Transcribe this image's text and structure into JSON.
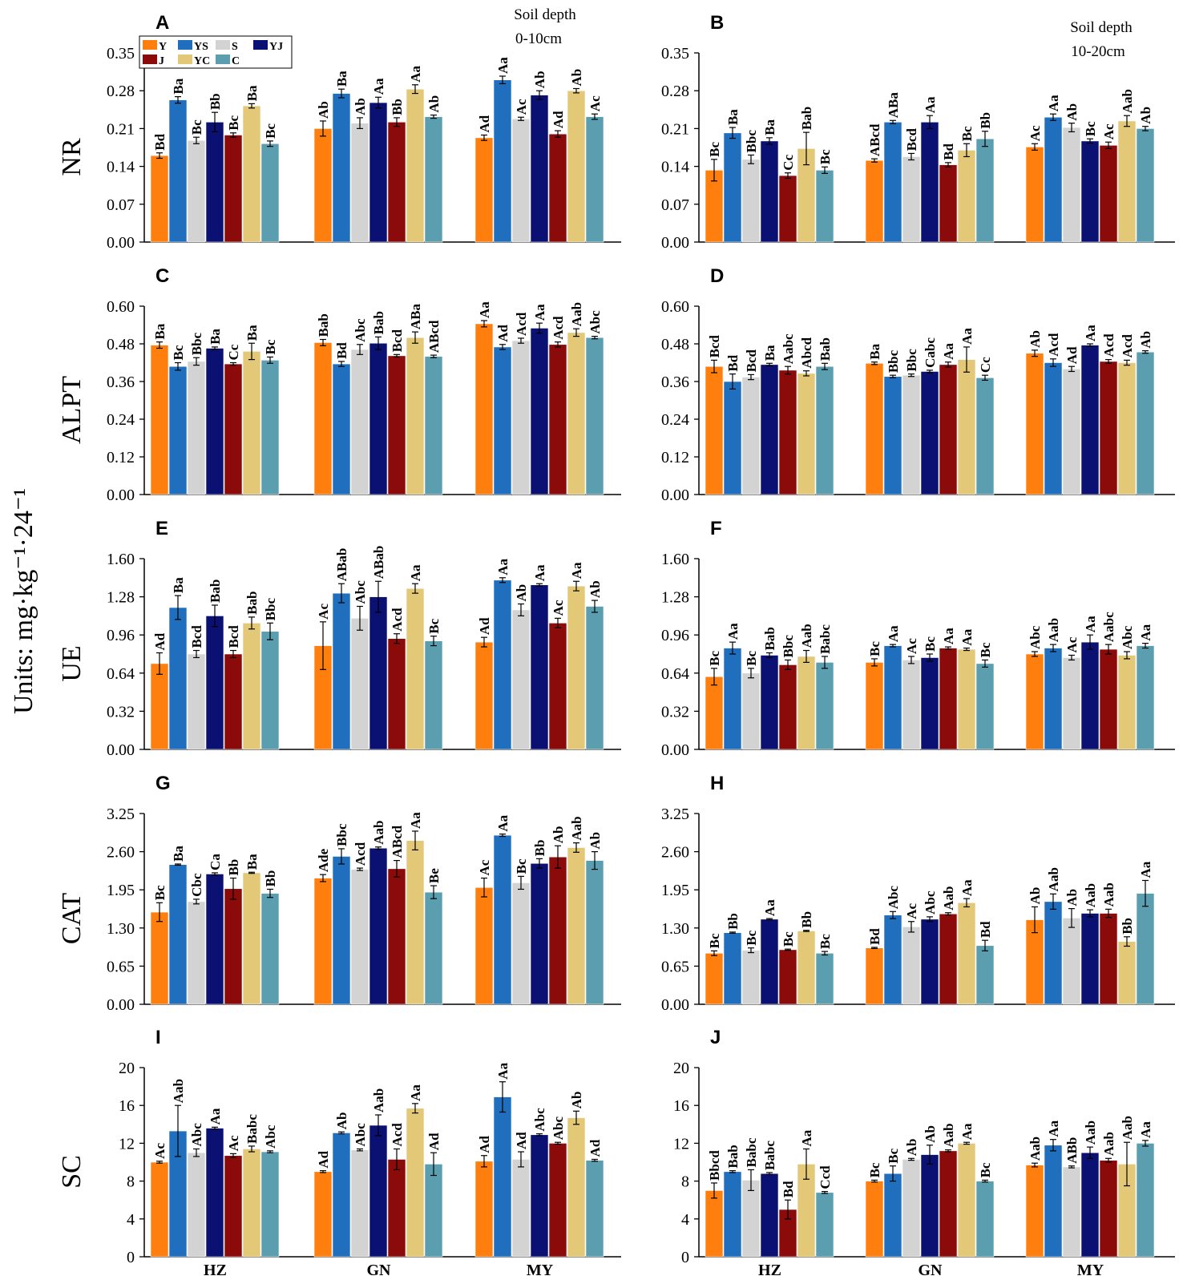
{
  "figure": {
    "units_label": "Units: mg·kg⁻¹·24⁻¹",
    "depth_left": {
      "title": "Soil depth",
      "range": "0-10cm"
    },
    "depth_right": {
      "title": "Soil depth",
      "range": "10-20cm"
    }
  },
  "legend": [
    {
      "name": "Y",
      "color": "#FF7F0E"
    },
    {
      "name": "YS",
      "color": "#1F6FBE"
    },
    {
      "name": "S",
      "color": "#D3D3D3"
    },
    {
      "name": "YJ",
      "color": "#0A1172"
    },
    {
      "name": "J",
      "color": "#8B0A0A"
    },
    {
      "name": "YC",
      "color": "#E3C878"
    },
    {
      "name": "C",
      "color": "#5B9EB0"
    }
  ],
  "chart_data": [
    {
      "type": "bar",
      "panel": "A",
      "ylabel": "NR",
      "depth": "0-10cm",
      "categories": [
        "HZ",
        "GN",
        "MY"
      ],
      "ylim": [
        0,
        0.35
      ],
      "ticks": [
        "0.00",
        "0.07",
        "0.14",
        "0.21",
        "0.28",
        "0.35"
      ],
      "values": [
        [
          0.16,
          0.263,
          0.188,
          0.222,
          0.198,
          0.252,
          0.182
        ],
        [
          0.21,
          0.275,
          0.22,
          0.258,
          0.222,
          0.283,
          0.232
        ],
        [
          0.193,
          0.3,
          0.228,
          0.272,
          0.2,
          0.28,
          0.232
        ]
      ],
      "errors": [
        [
          0.005,
          0.006,
          0.006,
          0.018,
          0.004,
          0.004,
          0.005
        ],
        [
          0.014,
          0.008,
          0.01,
          0.01,
          0.008,
          0.008,
          0.003
        ],
        [
          0.005,
          0.007,
          0.003,
          0.008,
          0.006,
          0.004,
          0.005
        ]
      ],
      "letters": [
        [
          "Bd",
          "Ba",
          "Bc",
          "Bb",
          "Bc",
          "Ba",
          "Bc"
        ],
        [
          "Ab",
          "Ba",
          "Ab",
          "Aa",
          "Bb",
          "Aa",
          "Ab"
        ],
        [
          "Ad",
          "Aa",
          "Ac",
          "Ab",
          "Ad",
          "Ab",
          "Ac"
        ]
      ]
    },
    {
      "type": "bar",
      "panel": "B",
      "ylabel": "",
      "depth": "10-20cm",
      "categories": [
        "HZ",
        "GN",
        "MY"
      ],
      "ylim": [
        0,
        0.35
      ],
      "ticks": [
        "0.00",
        "0.07",
        "0.14",
        "0.21",
        "0.28",
        "0.35"
      ],
      "values": [
        [
          0.133,
          0.202,
          0.153,
          0.187,
          0.123,
          0.173,
          0.133
        ],
        [
          0.151,
          0.222,
          0.158,
          0.222,
          0.143,
          0.17,
          0.191
        ],
        [
          0.176,
          0.231,
          0.212,
          0.187,
          0.179,
          0.224,
          0.21
        ]
      ],
      "errors": [
        [
          0.02,
          0.01,
          0.008,
          0.006,
          0.005,
          0.03,
          0.006
        ],
        [
          0.003,
          0.003,
          0.006,
          0.012,
          0.004,
          0.012,
          0.014
        ],
        [
          0.006,
          0.006,
          0.008,
          0.004,
          0.006,
          0.01,
          0.004
        ]
      ],
      "letters": [
        [
          "Bc",
          "Ba",
          "Bbc",
          "Ba",
          "Cc",
          "Bab",
          "Bc"
        ],
        [
          "ABcd",
          "ABa",
          "Bcd",
          "Aa",
          "Bd",
          "Bc",
          "Bb"
        ],
        [
          "Ac",
          "Aa",
          "Ab",
          "Bc",
          "Ac",
          "Aab",
          "Ab"
        ]
      ]
    },
    {
      "type": "bar",
      "panel": "C",
      "ylabel": "ALPT",
      "depth": "0-10cm",
      "categories": [
        "HZ",
        "GN",
        "MY"
      ],
      "ylim": [
        0,
        0.6
      ],
      "ticks": [
        "0.00",
        "0.12",
        "0.24",
        "0.36",
        "0.48",
        "0.60"
      ],
      "values": [
        [
          0.476,
          0.408,
          0.424,
          0.466,
          0.416,
          0.456,
          0.428
        ],
        [
          0.484,
          0.416,
          0.462,
          0.482,
          0.442,
          0.5,
          0.44
        ],
        [
          0.544,
          0.47,
          0.49,
          0.53,
          0.478,
          0.516,
          0.5
        ]
      ],
      "errors": [
        [
          0.01,
          0.012,
          0.012,
          0.004,
          0.004,
          0.026,
          0.01
        ],
        [
          0.01,
          0.008,
          0.016,
          0.02,
          0.004,
          0.018,
          0.004
        ],
        [
          0.01,
          0.008,
          0.008,
          0.016,
          0.008,
          0.012,
          0.004
        ]
      ],
      "letters": [
        [
          "Ba",
          "Bc",
          "Bbc",
          "Ba",
          "Cc",
          "Ba",
          "Bc"
        ],
        [
          "Bab",
          "Bd",
          "Abc",
          "Bab",
          "Bcd",
          "ABa",
          "ABcd"
        ],
        [
          "Aa",
          "Ad",
          "Acd",
          "Aa",
          "Acd",
          "Aab",
          "Abc"
        ]
      ]
    },
    {
      "type": "bar",
      "panel": "D",
      "ylabel": "",
      "depth": "10-20cm",
      "categories": [
        "HZ",
        "GN",
        "MY"
      ],
      "ylim": [
        0,
        0.6
      ],
      "ticks": [
        "0.00",
        "0.12",
        "0.24",
        "0.36",
        "0.48",
        "0.60"
      ],
      "values": [
        [
          0.408,
          0.36,
          0.374,
          0.414,
          0.396,
          0.386,
          0.408
        ],
        [
          0.418,
          0.376,
          0.38,
          0.392,
          0.414,
          0.43,
          0.372
        ],
        [
          0.45,
          0.42,
          0.4,
          0.476,
          0.424,
          0.42,
          0.454
        ]
      ],
      "errors": [
        [
          0.02,
          0.024,
          0.008,
          0.004,
          0.012,
          0.008,
          0.01
        ],
        [
          0.004,
          0.004,
          0.004,
          0.004,
          0.008,
          0.04,
          0.008
        ],
        [
          0.01,
          0.012,
          0.008,
          0.004,
          0.006,
          0.008,
          0.004
        ]
      ],
      "letters": [
        [
          "Bcd",
          "Bd",
          "Bcd",
          "Ba",
          "Aabc",
          "Abcd",
          "Bab"
        ],
        [
          "Ba",
          "Bbc",
          "Bbc",
          "Cabc",
          "Aa",
          "Aa",
          "Cc"
        ],
        [
          "Ab",
          "Acd",
          "Ad",
          "Aa",
          "Acd",
          "Acd",
          "Ab"
        ]
      ]
    },
    {
      "type": "bar",
      "panel": "E",
      "ylabel": "UE",
      "depth": "0-10cm",
      "categories": [
        "HZ",
        "GN",
        "MY"
      ],
      "ylim": [
        0,
        1.6
      ],
      "ticks": [
        "0.00",
        "0.32",
        "0.64",
        "0.96",
        "1.28",
        "1.60"
      ],
      "values": [
        [
          0.72,
          1.19,
          0.8,
          1.12,
          0.8,
          1.06,
          0.99
        ],
        [
          0.87,
          1.31,
          1.1,
          1.28,
          0.93,
          1.35,
          0.91
        ],
        [
          0.9,
          1.42,
          1.17,
          1.38,
          1.06,
          1.37,
          1.2
        ]
      ],
      "errors": [
        [
          0.09,
          0.1,
          0.03,
          0.09,
          0.03,
          0.05,
          0.07
        ],
        [
          0.2,
          0.08,
          0.1,
          0.13,
          0.04,
          0.04,
          0.04
        ],
        [
          0.04,
          0.02,
          0.05,
          0.01,
          0.04,
          0.04,
          0.05
        ]
      ],
      "letters": [
        [
          "Ad",
          "Ba",
          "Bcd",
          "Bab",
          "Bcd",
          "Bab",
          "Bbc"
        ],
        [
          "Ac",
          "ABab",
          "Abc",
          "ABab",
          "Acd",
          "Aa",
          "Bc"
        ],
        [
          "Ad",
          "Aa",
          "Ab",
          "Aa",
          "Ac",
          "Aa",
          "Ab"
        ]
      ]
    },
    {
      "type": "bar",
      "panel": "F",
      "ylabel": "",
      "depth": "10-20cm",
      "categories": [
        "HZ",
        "GN",
        "MY"
      ],
      "ylim": [
        0,
        1.6
      ],
      "ticks": [
        "0.00",
        "0.32",
        "0.64",
        "0.96",
        "1.28",
        "1.60"
      ],
      "values": [
        [
          0.61,
          0.85,
          0.64,
          0.79,
          0.71,
          0.78,
          0.73
        ],
        [
          0.73,
          0.87,
          0.75,
          0.77,
          0.85,
          0.84,
          0.72
        ],
        [
          0.8,
          0.85,
          0.77,
          0.9,
          0.84,
          0.79,
          0.87
        ]
      ],
      "errors": [
        [
          0.07,
          0.05,
          0.04,
          0.02,
          0.04,
          0.05,
          0.05
        ],
        [
          0.03,
          0.01,
          0.03,
          0.03,
          0.01,
          0.01,
          0.03
        ],
        [
          0.02,
          0.03,
          0.02,
          0.06,
          0.04,
          0.03,
          0.02
        ]
      ],
      "letters": [
        [
          "Bc",
          "Aa",
          "Bc",
          "Bab",
          "Bbc",
          "Aab",
          "Babc"
        ],
        [
          "Bc",
          "Aa",
          "Ac",
          "Bc",
          "Aa",
          "Aa",
          "Bc"
        ],
        [
          "Abc",
          "Aab",
          "Ac",
          "Aa",
          "Aabc",
          "Abc",
          "Aa"
        ]
      ]
    },
    {
      "type": "bar",
      "panel": "G",
      "ylabel": "CAT",
      "depth": "0-10cm",
      "categories": [
        "HZ",
        "GN",
        "MY"
      ],
      "ylim": [
        0,
        3.25
      ],
      "ticks": [
        "0.00",
        "0.65",
        "1.30",
        "1.95",
        "2.60",
        "3.25"
      ],
      "values": [
        [
          1.57,
          2.38,
          1.75,
          2.22,
          1.97,
          2.24,
          1.89
        ],
        [
          2.15,
          2.52,
          2.3,
          2.66,
          2.31,
          2.79,
          1.91
        ],
        [
          1.99,
          2.88,
          2.07,
          2.4,
          2.51,
          2.67,
          2.45
        ]
      ],
      "errors": [
        [
          0.16,
          0.01,
          0.04,
          0.02,
          0.18,
          0.01,
          0.07
        ],
        [
          0.06,
          0.13,
          0.02,
          0.02,
          0.14,
          0.16,
          0.11
        ],
        [
          0.16,
          0.02,
          0.11,
          0.08,
          0.19,
          0.08,
          0.15
        ]
      ],
      "letters": [
        [
          "Bc",
          "Ba",
          "Cbc",
          "Ca",
          "Bb",
          "Ba",
          "Bb"
        ],
        [
          "Ade",
          "Bbc",
          "Acd",
          "Aab",
          "ABcd",
          "Aa",
          "Be"
        ],
        [
          "Ac",
          "Aa",
          "Bc",
          "Bb",
          "Ab",
          "Aab",
          "Ab"
        ]
      ]
    },
    {
      "type": "bar",
      "panel": "H",
      "ylabel": "",
      "depth": "10-20cm",
      "categories": [
        "HZ",
        "GN",
        "MY"
      ],
      "ylim": [
        0,
        3.25
      ],
      "ticks": [
        "0.00",
        "0.65",
        "1.30",
        "1.95",
        "2.60",
        "3.25"
      ],
      "values": [
        [
          0.87,
          1.22,
          0.92,
          1.45,
          0.93,
          1.25,
          0.87
        ],
        [
          0.96,
          1.52,
          1.32,
          1.45,
          1.54,
          1.73,
          1.0
        ],
        [
          1.44,
          1.75,
          1.47,
          1.55,
          1.55,
          1.07,
          1.89
        ]
      ],
      "errors": [
        [
          0.04,
          0.01,
          0.04,
          0.01,
          0.01,
          0.01,
          0.03
        ],
        [
          0.01,
          0.06,
          0.09,
          0.04,
          0.02,
          0.07,
          0.09
        ],
        [
          0.22,
          0.13,
          0.16,
          0.06,
          0.07,
          0.08,
          0.22
        ]
      ],
      "letters": [
        [
          "Bc",
          "Bb",
          "Bc",
          "Aa",
          "Bc",
          "Bb",
          "Bc"
        ],
        [
          "Bd",
          "Abc",
          "Ac",
          "Abc",
          "Aab",
          "Aa",
          "Bd"
        ],
        [
          "Ab",
          "Aab",
          "Ab",
          "Aab",
          "Aab",
          "Bb",
          "Aa"
        ]
      ]
    },
    {
      "type": "bar",
      "panel": "I",
      "ylabel": "SC",
      "depth": "0-10cm",
      "categories": [
        "HZ",
        "GN",
        "MY"
      ],
      "ylim": [
        0,
        20
      ],
      "ticks": [
        "0",
        "4",
        "8",
        "12",
        "16",
        "20"
      ],
      "values": [
        [
          10.0,
          13.3,
          11.0,
          13.6,
          10.7,
          11.4,
          11.1
        ],
        [
          9.0,
          13.1,
          11.3,
          13.9,
          10.3,
          15.7,
          9.8
        ],
        [
          10.1,
          16.9,
          10.3,
          12.9,
          12.0,
          14.7,
          10.2
        ]
      ],
      "errors": [
        [
          0.1,
          2.7,
          0.4,
          0.1,
          0.2,
          0.3,
          0.1
        ],
        [
          0.1,
          0.1,
          0.1,
          1.1,
          1.1,
          0.5,
          1.2
        ],
        [
          0.6,
          1.6,
          0.8,
          0.1,
          0.1,
          0.7,
          0.1
        ]
      ],
      "letters": [
        [
          "Ac",
          "Aab",
          "Abc",
          "Aa",
          "Ac",
          "Babc",
          "Abc"
        ],
        [
          "Ad",
          "Ab",
          "Abc",
          "Aab",
          "Acd",
          "Aa",
          "Ad"
        ],
        [
          "Ad",
          "Aa",
          "Ad",
          "Abc",
          "Abc",
          "Ab",
          "Ad"
        ]
      ]
    },
    {
      "type": "bar",
      "panel": "J",
      "ylabel": "",
      "depth": "10-20cm",
      "categories": [
        "HZ",
        "GN",
        "MY"
      ],
      "ylim": [
        0,
        20
      ],
      "ticks": [
        "0",
        "4",
        "8",
        "12",
        "16",
        "20"
      ],
      "values": [
        [
          7.0,
          9.0,
          8.1,
          8.8,
          5.0,
          9.8,
          6.8
        ],
        [
          8.0,
          8.8,
          10.3,
          10.8,
          11.2,
          12.0,
          8.0
        ],
        [
          9.7,
          11.8,
          9.5,
          11.0,
          10.2,
          9.8,
          12.0
        ]
      ],
      "errors": [
        [
          0.8,
          0.1,
          1.1,
          0.1,
          1.0,
          1.6,
          0.1
        ],
        [
          0.1,
          0.8,
          0.1,
          1.0,
          0.1,
          0.1,
          0.1
        ],
        [
          0.2,
          0.6,
          0.1,
          0.6,
          0.2,
          2.3,
          0.3
        ]
      ],
      "letters": [
        [
          "Bbcd",
          "Bab",
          "Babc",
          "Babc",
          "Bd",
          "Aa",
          "Ccd"
        ],
        [
          "Bc",
          "Bc",
          "Ab",
          "Ab",
          "Aab",
          "Aa",
          "Bc"
        ],
        [
          "Aab",
          "Aa",
          "ABb",
          "Aab",
          "Aab",
          "Aab",
          "Aa"
        ]
      ]
    }
  ]
}
